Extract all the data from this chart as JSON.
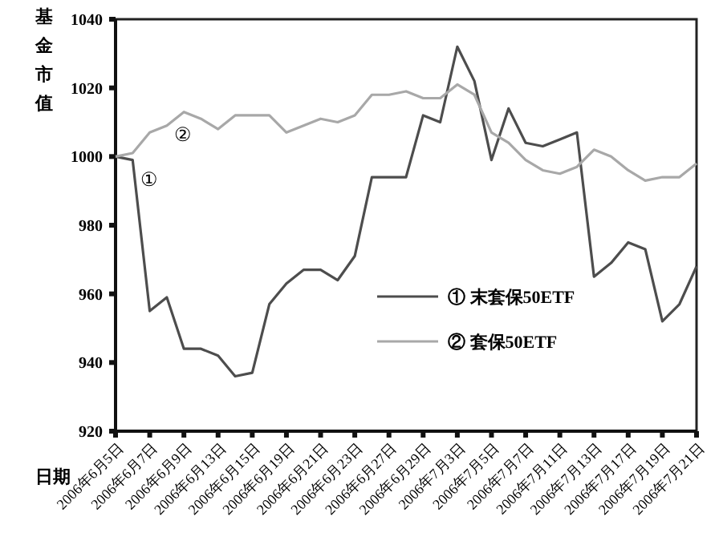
{
  "chart_data": {
    "type": "line",
    "ylabel": "基金市值",
    "xlabel": "日期",
    "categories": [
      "2006年6月5日",
      null,
      "2006年6月7日",
      null,
      "2006年6月9日",
      null,
      "2006年6月13日",
      null,
      "2006年6月15日",
      null,
      "2006年6月19日",
      null,
      "2006年6月21日",
      null,
      "2006年6月23日",
      null,
      "2006年6月27日",
      null,
      "2006年6月29日",
      null,
      "2006年7月3日",
      null,
      "2006年7月5日",
      null,
      "2006年7月7日",
      null,
      "2006年7月11日",
      null,
      "2006年7月13日",
      null,
      "2006年7月17日",
      null,
      "2006年7月19日",
      null,
      "2006年7月21日"
    ],
    "series": [
      {
        "name": "① 末套保50ETF",
        "color": "#4d4d4d",
        "values": [
          1000,
          999,
          955,
          959,
          944,
          944,
          942,
          936,
          937,
          957,
          963,
          967,
          967,
          964,
          971,
          994,
          994,
          994,
          1012,
          1010,
          1032,
          1022,
          999,
          1014,
          1004,
          1003,
          1005,
          1007,
          965,
          969,
          975,
          973,
          952,
          957,
          968
        ]
      },
      {
        "name": "② 套保50ETF",
        "color": "#a8a8a8",
        "values": [
          1000,
          1001,
          1007,
          1009,
          1013,
          1011,
          1008,
          1012,
          1012,
          1012,
          1007,
          1009,
          1011,
          1010,
          1012,
          1018,
          1018,
          1019,
          1017,
          1017,
          1021,
          1018,
          1007,
          1004,
          999,
          996,
          995,
          997,
          1002,
          1000,
          996,
          993,
          994,
          994,
          998
        ]
      }
    ],
    "ylim": [
      920,
      1040
    ],
    "yticks": [
      920,
      940,
      960,
      980,
      1000,
      1020,
      1040
    ],
    "grid": false,
    "legend": "right",
    "marker": "none",
    "line_style": "solid",
    "annotations": [
      "①",
      "②"
    ]
  }
}
